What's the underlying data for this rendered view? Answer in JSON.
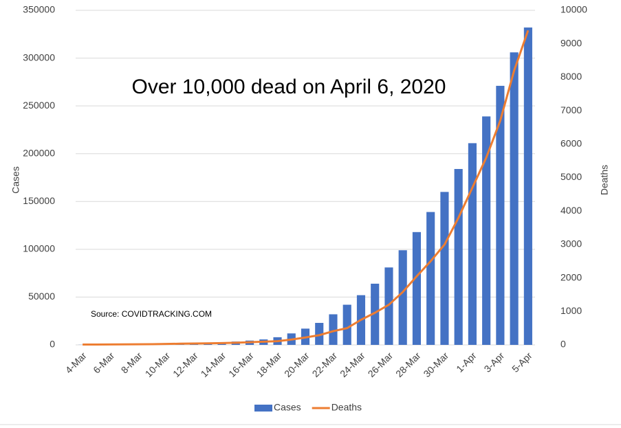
{
  "chart_data": {
    "type": "bar_line",
    "annotations": [
      "Over 10,000 dead on April 6, 2020",
      "Source: COVIDTRACKING.COM"
    ],
    "ylabel": "Cases",
    "y2label": "Deaths",
    "categories": [
      "4-Mar",
      null,
      "6-Mar",
      null,
      "8-Mar",
      null,
      "10-Mar",
      null,
      "12-Mar",
      null,
      "14-Mar",
      null,
      "16-Mar",
      null,
      "18-Mar",
      null,
      "20-Mar",
      null,
      "22-Mar",
      null,
      "24-Mar",
      null,
      "26-Mar",
      null,
      "28-Mar",
      null,
      "30-Mar",
      null,
      "1-Apr",
      null,
      "3-Apr",
      null,
      "5-Apr"
    ],
    "series": [
      {
        "name": "Cases",
        "color": "#4472c4",
        "type": "bar",
        "values": [
          100,
          200,
          300,
          400,
          500,
          600,
          900,
          1200,
          1600,
          2200,
          2700,
          3500,
          4500,
          5700,
          8000,
          12000,
          17000,
          23000,
          32000,
          42000,
          52000,
          64000,
          81000,
          99000,
          118000,
          139000,
          160000,
          184000,
          211000,
          239000,
          271000,
          306000,
          332000
        ]
      },
      {
        "name": "Deaths",
        "color": "#ed7d31",
        "type": "line",
        "axis": "y2",
        "values": [
          10,
          10,
          12,
          15,
          18,
          21,
          27,
          35,
          40,
          45,
          55,
          63,
          80,
          95,
          110,
          160,
          220,
          290,
          410,
          500,
          750,
          960,
          1200,
          1580,
          2050,
          2500,
          3000,
          3800,
          4700,
          5600,
          6700,
          8200,
          9400
        ]
      }
    ],
    "ylim": [
      0,
      350000
    ],
    "yticks": [
      0,
      50000,
      100000,
      150000,
      200000,
      250000,
      300000,
      350000
    ],
    "y2lim": [
      0,
      10000
    ],
    "y2ticks": [
      0,
      1000,
      2000,
      3000,
      4000,
      5000,
      6000,
      7000,
      8000,
      9000,
      10000
    ],
    "grid": true,
    "legend": "bottom"
  }
}
